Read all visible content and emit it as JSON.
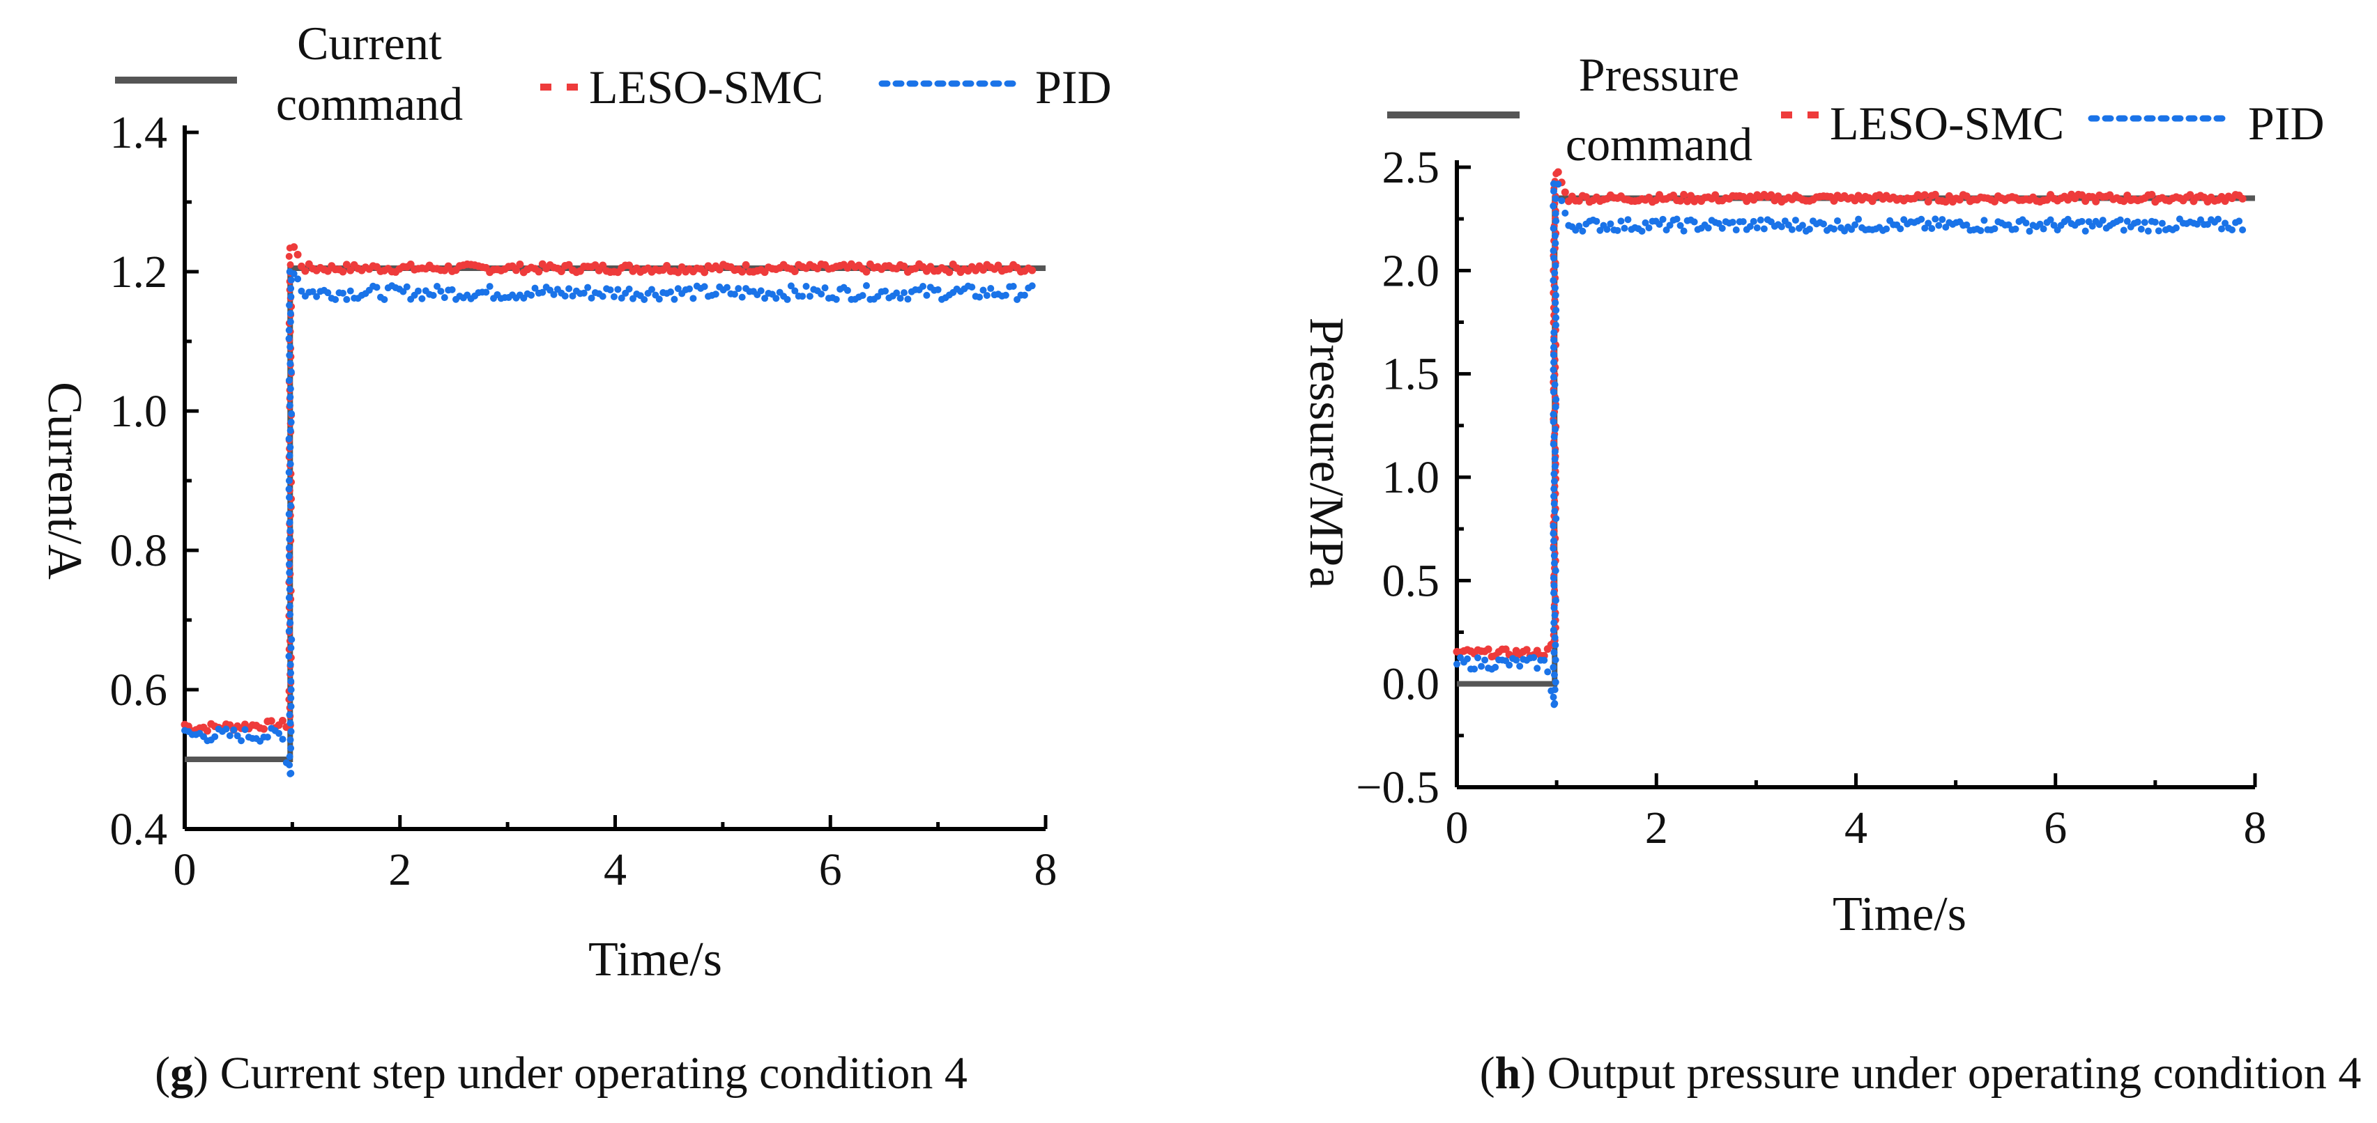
{
  "colors": {
    "command": "#555555",
    "leso_smc": "#ee3b3b",
    "pid": "#1a73e8",
    "axis": "#000000"
  },
  "chart_data": [
    {
      "type": "line",
      "panel": "g",
      "xlabel": "Time/s",
      "ylabel": "Current/A",
      "xlim": [
        0,
        8
      ],
      "ylim": [
        0.4,
        1.4
      ],
      "xticks": [
        "0",
        "2",
        "4",
        "6",
        "8"
      ],
      "yticks": [
        "0.4",
        "0.6",
        "0.8",
        "1.0",
        "1.2",
        "1.4"
      ],
      "legend": {
        "placement": "top",
        "entries": [
          "Current command",
          "LESO-SMC",
          "PID"
        ]
      },
      "caption": {
        "letter": "g",
        "text": ") Current step under operating condition 4"
      },
      "series": [
        {
          "name": "Current command",
          "style": "solid",
          "x": [
            0,
            0.98,
            0.98,
            8
          ],
          "y": [
            0.5,
            0.5,
            1.205,
            1.205
          ]
        },
        {
          "name": "LESO-SMC",
          "style": "dashed",
          "x": [
            0,
            0.05,
            0.9,
            0.98,
            1.0,
            1.1,
            8
          ],
          "y": [
            0.55,
            0.545,
            0.55,
            0.55,
            1.24,
            1.205,
            1.205
          ]
        },
        {
          "name": "PID",
          "style": "dotted",
          "x": [
            0,
            0.05,
            0.9,
            0.98,
            1.0,
            1.1,
            8
          ],
          "y": [
            0.535,
            0.535,
            0.535,
            0.48,
            1.21,
            1.17,
            1.17
          ]
        }
      ]
    },
    {
      "type": "line",
      "panel": "h",
      "xlabel": "Time/s",
      "ylabel": "Pressure/MPa",
      "xlim": [
        0,
        8
      ],
      "ylim": [
        -0.5,
        2.5
      ],
      "xticks": [
        "0",
        "2",
        "4",
        "6",
        "8"
      ],
      "yticks": [
        "−0.5",
        "0.0",
        "0.5",
        "1.0",
        "1.5",
        "2.0",
        "2.5"
      ],
      "legend": {
        "placement": "top",
        "entries": [
          "Pressure command",
          "LESO-SMC",
          "PID"
        ]
      },
      "caption": {
        "letter": "h",
        "text": ") Output pressure under operating condition 4"
      },
      "series": [
        {
          "name": "Pressure command",
          "style": "solid",
          "x": [
            0,
            0.98,
            0.98,
            8
          ],
          "y": [
            0.0,
            0.0,
            2.35,
            2.35
          ]
        },
        {
          "name": "LESO-SMC",
          "style": "dashed",
          "x": [
            0,
            0.05,
            0.9,
            0.98,
            1.0,
            1.1,
            8
          ],
          "y": [
            0.15,
            0.15,
            0.15,
            0.2,
            2.5,
            2.35,
            2.35
          ]
        },
        {
          "name": "PID",
          "style": "dotted",
          "x": [
            0,
            0.05,
            0.9,
            0.98,
            1.0,
            1.1,
            8
          ],
          "y": [
            0.1,
            0.1,
            0.1,
            -0.1,
            2.45,
            2.22,
            2.22
          ]
        }
      ]
    }
  ]
}
